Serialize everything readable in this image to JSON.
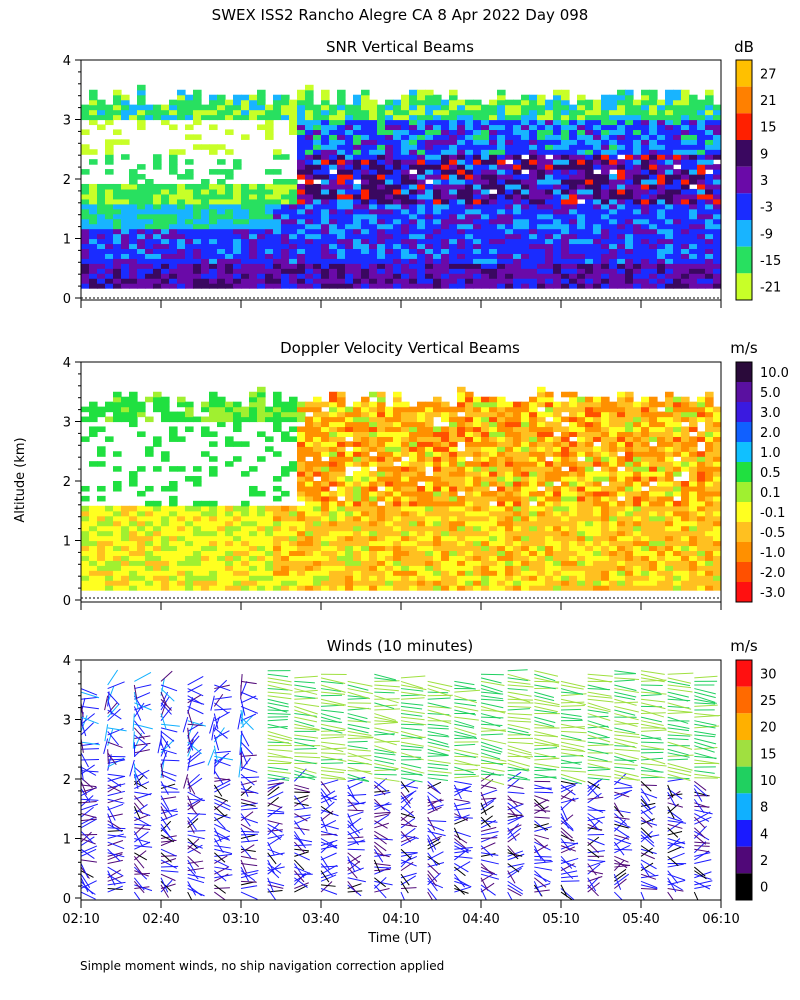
{
  "figure": {
    "title": "SWEX ISS2 Rancho Alegre CA   8 Apr 2022 Day 098",
    "ylabel": "Altitude (km)",
    "xlabel": "Time (UT)",
    "footnote": "Simple moment winds, no ship navigation correction applied",
    "x_ticks": [
      "02:10",
      "02:40",
      "03:10",
      "03:40",
      "04:10",
      "04:40",
      "05:10",
      "05:40",
      "06:10"
    ],
    "y_ticks": [
      "0",
      "1",
      "2",
      "3",
      "4"
    ]
  },
  "chart_data": [
    {
      "type": "heatmap",
      "title": "SNR Vertical Beams",
      "unit": "dB",
      "xlim": [
        "02:10",
        "06:10"
      ],
      "ylim": [
        0,
        4
      ],
      "colorbar_levels": [
        "27",
        "21",
        "15",
        "9",
        "3",
        "-3",
        "-9",
        "-15",
        "-21"
      ],
      "colorbar_colors": [
        "#ffc000",
        "#ff8000",
        "#ff2000",
        "#3a0860",
        "#6a0aa8",
        "#1a2cff",
        "#18b4ff",
        "#28e060",
        "#c8ff28"
      ],
      "data_top_km": 3.4,
      "summary": "SNR decreases with altitude; strongest returns (9 to 27 dB) near surface and in 1.5-2.3 km layer after 03:40"
    },
    {
      "type": "heatmap",
      "title": "Doppler Velocity Vertical Beams",
      "unit": "m/s",
      "xlim": [
        "02:10",
        "06:10"
      ],
      "ylim": [
        0,
        4
      ],
      "colorbar_levels": [
        "10.0",
        "5.0",
        "3.0",
        "2.0",
        "1.0",
        "0.5",
        "0.1",
        "-0.1",
        "-0.5",
        "-1.0",
        "-2.0",
        "-3.0"
      ],
      "colorbar_colors": [
        "#2a0a3a",
        "#5a10a0",
        "#3a1ae0",
        "#1060ff",
        "#10c0ff",
        "#20e040",
        "#a0f030",
        "#ffff20",
        "#ffc020",
        "#ff9000",
        "#ff5000",
        "#ff1010"
      ],
      "data_top_km": 3.4,
      "summary": "Mostly weak downward motion (-0.1 to -1.0 m/s) below 1.6 km; -0.5 to -2.0 m/s above 2 km after 03:30"
    },
    {
      "type": "wind_barbs",
      "title": "Winds (10 minutes)",
      "unit": "m/s",
      "xlim": [
        "02:10",
        "06:10"
      ],
      "ylim": [
        0,
        4
      ],
      "colorbar_levels": [
        "30",
        "25",
        "20",
        "15",
        "10",
        "8",
        "4",
        "2",
        "0"
      ],
      "colorbar_colors": [
        "#ff1010",
        "#ff6a00",
        "#ffb000",
        "#a0e040",
        "#20d060",
        "#10b0ff",
        "#1a1aff",
        "#500878",
        "#000000"
      ],
      "profile_times": [
        "02:10",
        "02:20",
        "02:30",
        "02:40",
        "02:50",
        "03:00",
        "03:10",
        "03:20",
        "03:30",
        "03:40",
        "03:50",
        "04:00",
        "04:10",
        "04:20",
        "04:30",
        "04:40",
        "04:50",
        "05:00",
        "05:10",
        "05:20",
        "05:30",
        "05:40",
        "05:50",
        "06:00"
      ],
      "summary": "Light winds (0-8 m/s) below 2 km; 10-20 m/s winds above 2 km after 03:30"
    }
  ]
}
